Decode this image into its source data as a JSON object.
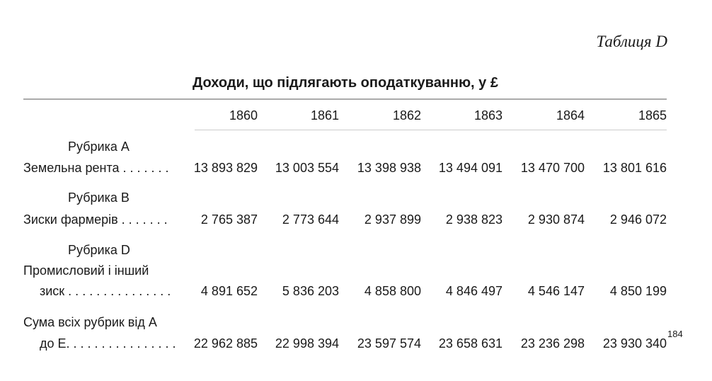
{
  "table_label": "Таблиця D",
  "title": "Доходи, що підлягають оподаткуванню, у £",
  "years": [
    "1860",
    "1861",
    "1862",
    "1863",
    "1864",
    "1865"
  ],
  "rows": [
    {
      "section": "Рубрика A",
      "label_lines": [
        "Земельна рента . . . . . . ."
      ],
      "values": [
        "13 893 829",
        "13 003 554",
        "13 398 938",
        "13 494 091",
        "13 470 700",
        "13 801 616"
      ]
    },
    {
      "section": "Рубрика B",
      "label_lines": [
        "Зиски фармерів . . . . . . ."
      ],
      "values": [
        "2 765 387",
        "2 773 644",
        "2 937 899",
        "2 938 823",
        "2 930 874",
        "2 946 072"
      ]
    },
    {
      "section": "Рубрика D",
      "label_lines": [
        "Промисловий і інший",
        "зиск . . . . . . . . . . . . . . ."
      ],
      "values": [
        "4 891 652",
        "5 836 203",
        "4 858 800",
        "4 846 497",
        "4 546 147",
        "4 850 199"
      ]
    },
    {
      "section": "",
      "label_lines": [
        "Сума всіх рубрик від A",
        "до E. . . . . . . . . . . . . . . ."
      ],
      "values": [
        "22 962 885",
        "22 998 394",
        "23 597 574",
        "23 658 631",
        "23 236 298",
        "23 930 340"
      ]
    }
  ],
  "footnote_mark": "184"
}
